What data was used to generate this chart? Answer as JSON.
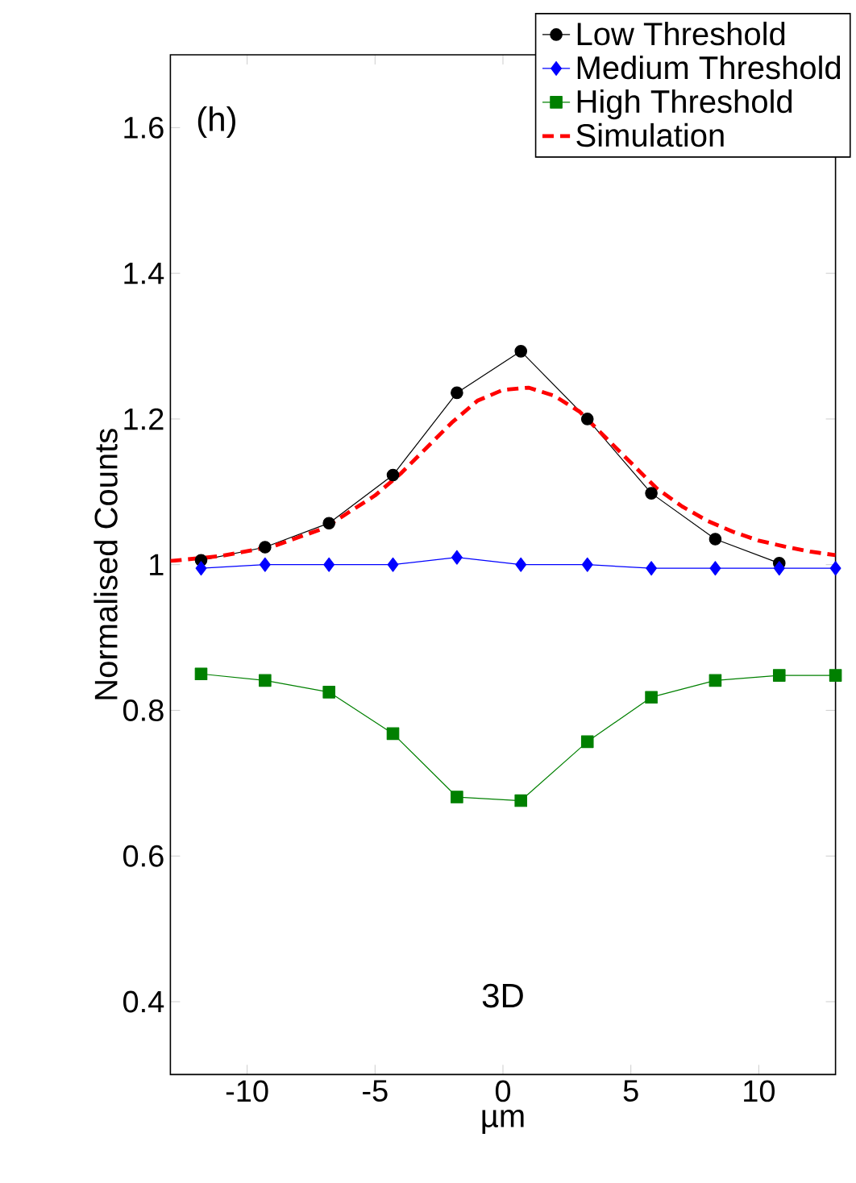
{
  "chart_data": {
    "type": "line",
    "xlabel": "µm",
    "ylabel": "Normalised Counts",
    "annotations": [
      "(h)",
      "3D"
    ],
    "xlim": [
      -13,
      13
    ],
    "ylim": [
      0.3,
      1.7
    ],
    "xticks": [
      -10,
      -5,
      0,
      5,
      10
    ],
    "yticks": [
      0.4,
      0.6,
      0.8,
      1,
      1.2,
      1.4,
      1.6
    ],
    "grid": false,
    "legend": "top right",
    "series": [
      {
        "name": "Low Threshold",
        "color": "#000000",
        "marker": "circle",
        "line_style": "solid",
        "x": [
          -11.8,
          -9.3,
          -6.8,
          -4.3,
          -1.8,
          0.7,
          3.3,
          5.8,
          8.3,
          10.8
        ],
        "values": [
          1.006,
          1.024,
          1.057,
          1.123,
          1.236,
          1.293,
          1.2,
          1.098,
          1.035,
          1.002
        ]
      },
      {
        "name": "Medium Threshold",
        "color": "#0000ff",
        "marker": "diamond",
        "line_style": "solid",
        "x": [
          -11.8,
          -9.3,
          -6.8,
          -4.3,
          -1.8,
          0.7,
          3.3,
          5.8,
          8.3,
          10.8,
          13
        ],
        "values": [
          0.995,
          1.0,
          1.0,
          1.0,
          1.01,
          1.0,
          1.0,
          0.995,
          0.995,
          0.995,
          0.995
        ]
      },
      {
        "name": "High Threshold",
        "color": "#008000",
        "marker": "square",
        "line_style": "solid",
        "x": [
          -11.8,
          -9.3,
          -6.8,
          -4.3,
          -1.8,
          0.7,
          3.3,
          5.8,
          8.3,
          10.8,
          13
        ],
        "values": [
          0.85,
          0.841,
          0.825,
          0.768,
          0.681,
          0.676,
          0.757,
          0.818,
          0.841,
          0.848,
          0.848
        ]
      },
      {
        "name": "Simulation",
        "color": "#ff0000",
        "marker": "none",
        "line_style": "dashed",
        "x": [
          -13,
          -11,
          -9,
          -7,
          -5,
          -4,
          -3,
          -2,
          -1,
          0,
          1,
          2,
          3,
          4,
          5,
          6,
          7,
          8,
          9,
          10,
          11,
          12,
          13
        ],
        "values": [
          1.005,
          1.012,
          1.025,
          1.05,
          1.095,
          1.125,
          1.16,
          1.195,
          1.225,
          1.24,
          1.243,
          1.232,
          1.21,
          1.175,
          1.14,
          1.105,
          1.08,
          1.06,
          1.045,
          1.033,
          1.025,
          1.018,
          1.013
        ]
      }
    ]
  }
}
